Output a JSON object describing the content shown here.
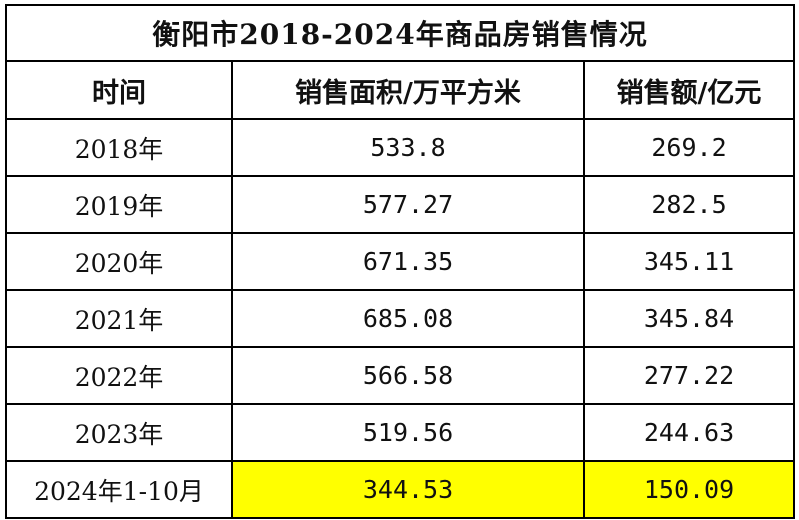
{
  "title": "衡阳市2018-2024年商品房销售情况",
  "headers": [
    "时间",
    "销售面积/万平方米",
    "销售额/亿元"
  ],
  "rows": [
    {
      "year": "2018年",
      "area": "533.8",
      "sales": "269.2"
    },
    {
      "year": "2019年",
      "area": "577.27",
      "sales": "282.5"
    },
    {
      "year": "2020年",
      "area": "671.35",
      "sales": "345.11"
    },
    {
      "year": "2021年",
      "area": "685.08",
      "sales": "345.84"
    },
    {
      "year": "2022年",
      "area": "566.58",
      "sales": "277.22"
    },
    {
      "year": "2023年",
      "area": "519.56",
      "sales": "244.63"
    },
    {
      "year": "2024年1-10月",
      "area": "344.53",
      "sales": "150.09"
    }
  ],
  "highlight_color": "#ffff00"
}
